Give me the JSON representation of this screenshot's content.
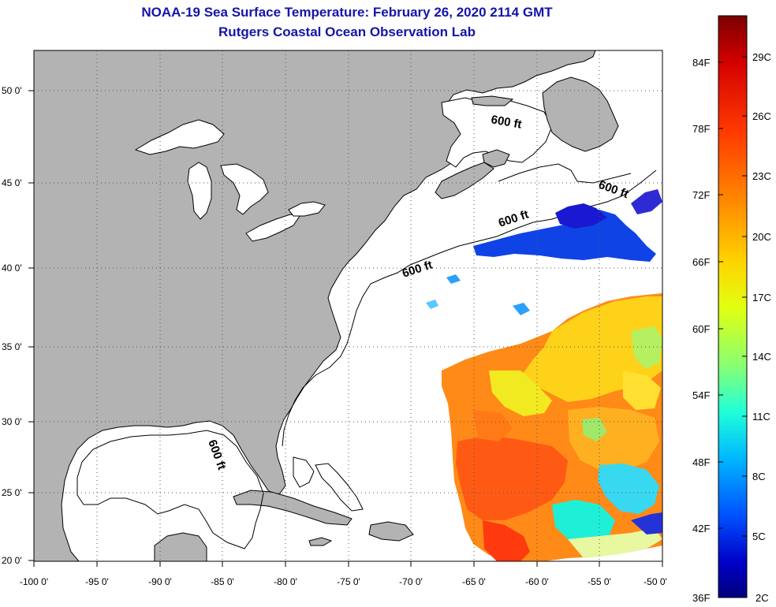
{
  "title": {
    "line1": "NOAA-19 Sea Surface Temperature:  February 26, 2020 2114 GMT",
    "line2": "Rutgers Coastal Ocean Observation Lab"
  },
  "map": {
    "lat_labels": [
      "50 0'",
      "45 0'",
      "40 0'",
      "35 0'",
      "30 0'",
      "25 0'",
      "20 0'"
    ],
    "lon_labels": [
      "-100 0'",
      "-95 0'",
      "-90 0'",
      "-85 0'",
      "-80 0'",
      "-75 0'",
      "-70 0'",
      "-65 0'",
      "-60 0'",
      "-55 0'",
      "-50 0'"
    ],
    "isobath_label": "600 ft",
    "colors": {
      "land": "#b3b3b3",
      "ocean": "#ffffff",
      "coast": "#000000"
    }
  },
  "colorbar": {
    "fahrenheit": [
      "84F",
      "78F",
      "72F",
      "66F",
      "60F",
      "54F",
      "48F",
      "42F",
      "36F"
    ],
    "celsius": [
      "29C",
      "26C",
      "23C",
      "20C",
      "17C",
      "14C",
      "11C",
      "8C",
      "5C",
      "2C"
    ],
    "gradient_colors": [
      "#7a0000",
      "#d40000",
      "#ff3a00",
      "#ff8a00",
      "#ffd200",
      "#e2ff10",
      "#8aff70",
      "#20ffd8",
      "#00b8ff",
      "#0050ff",
      "#0000c8",
      "#00007c"
    ]
  }
}
